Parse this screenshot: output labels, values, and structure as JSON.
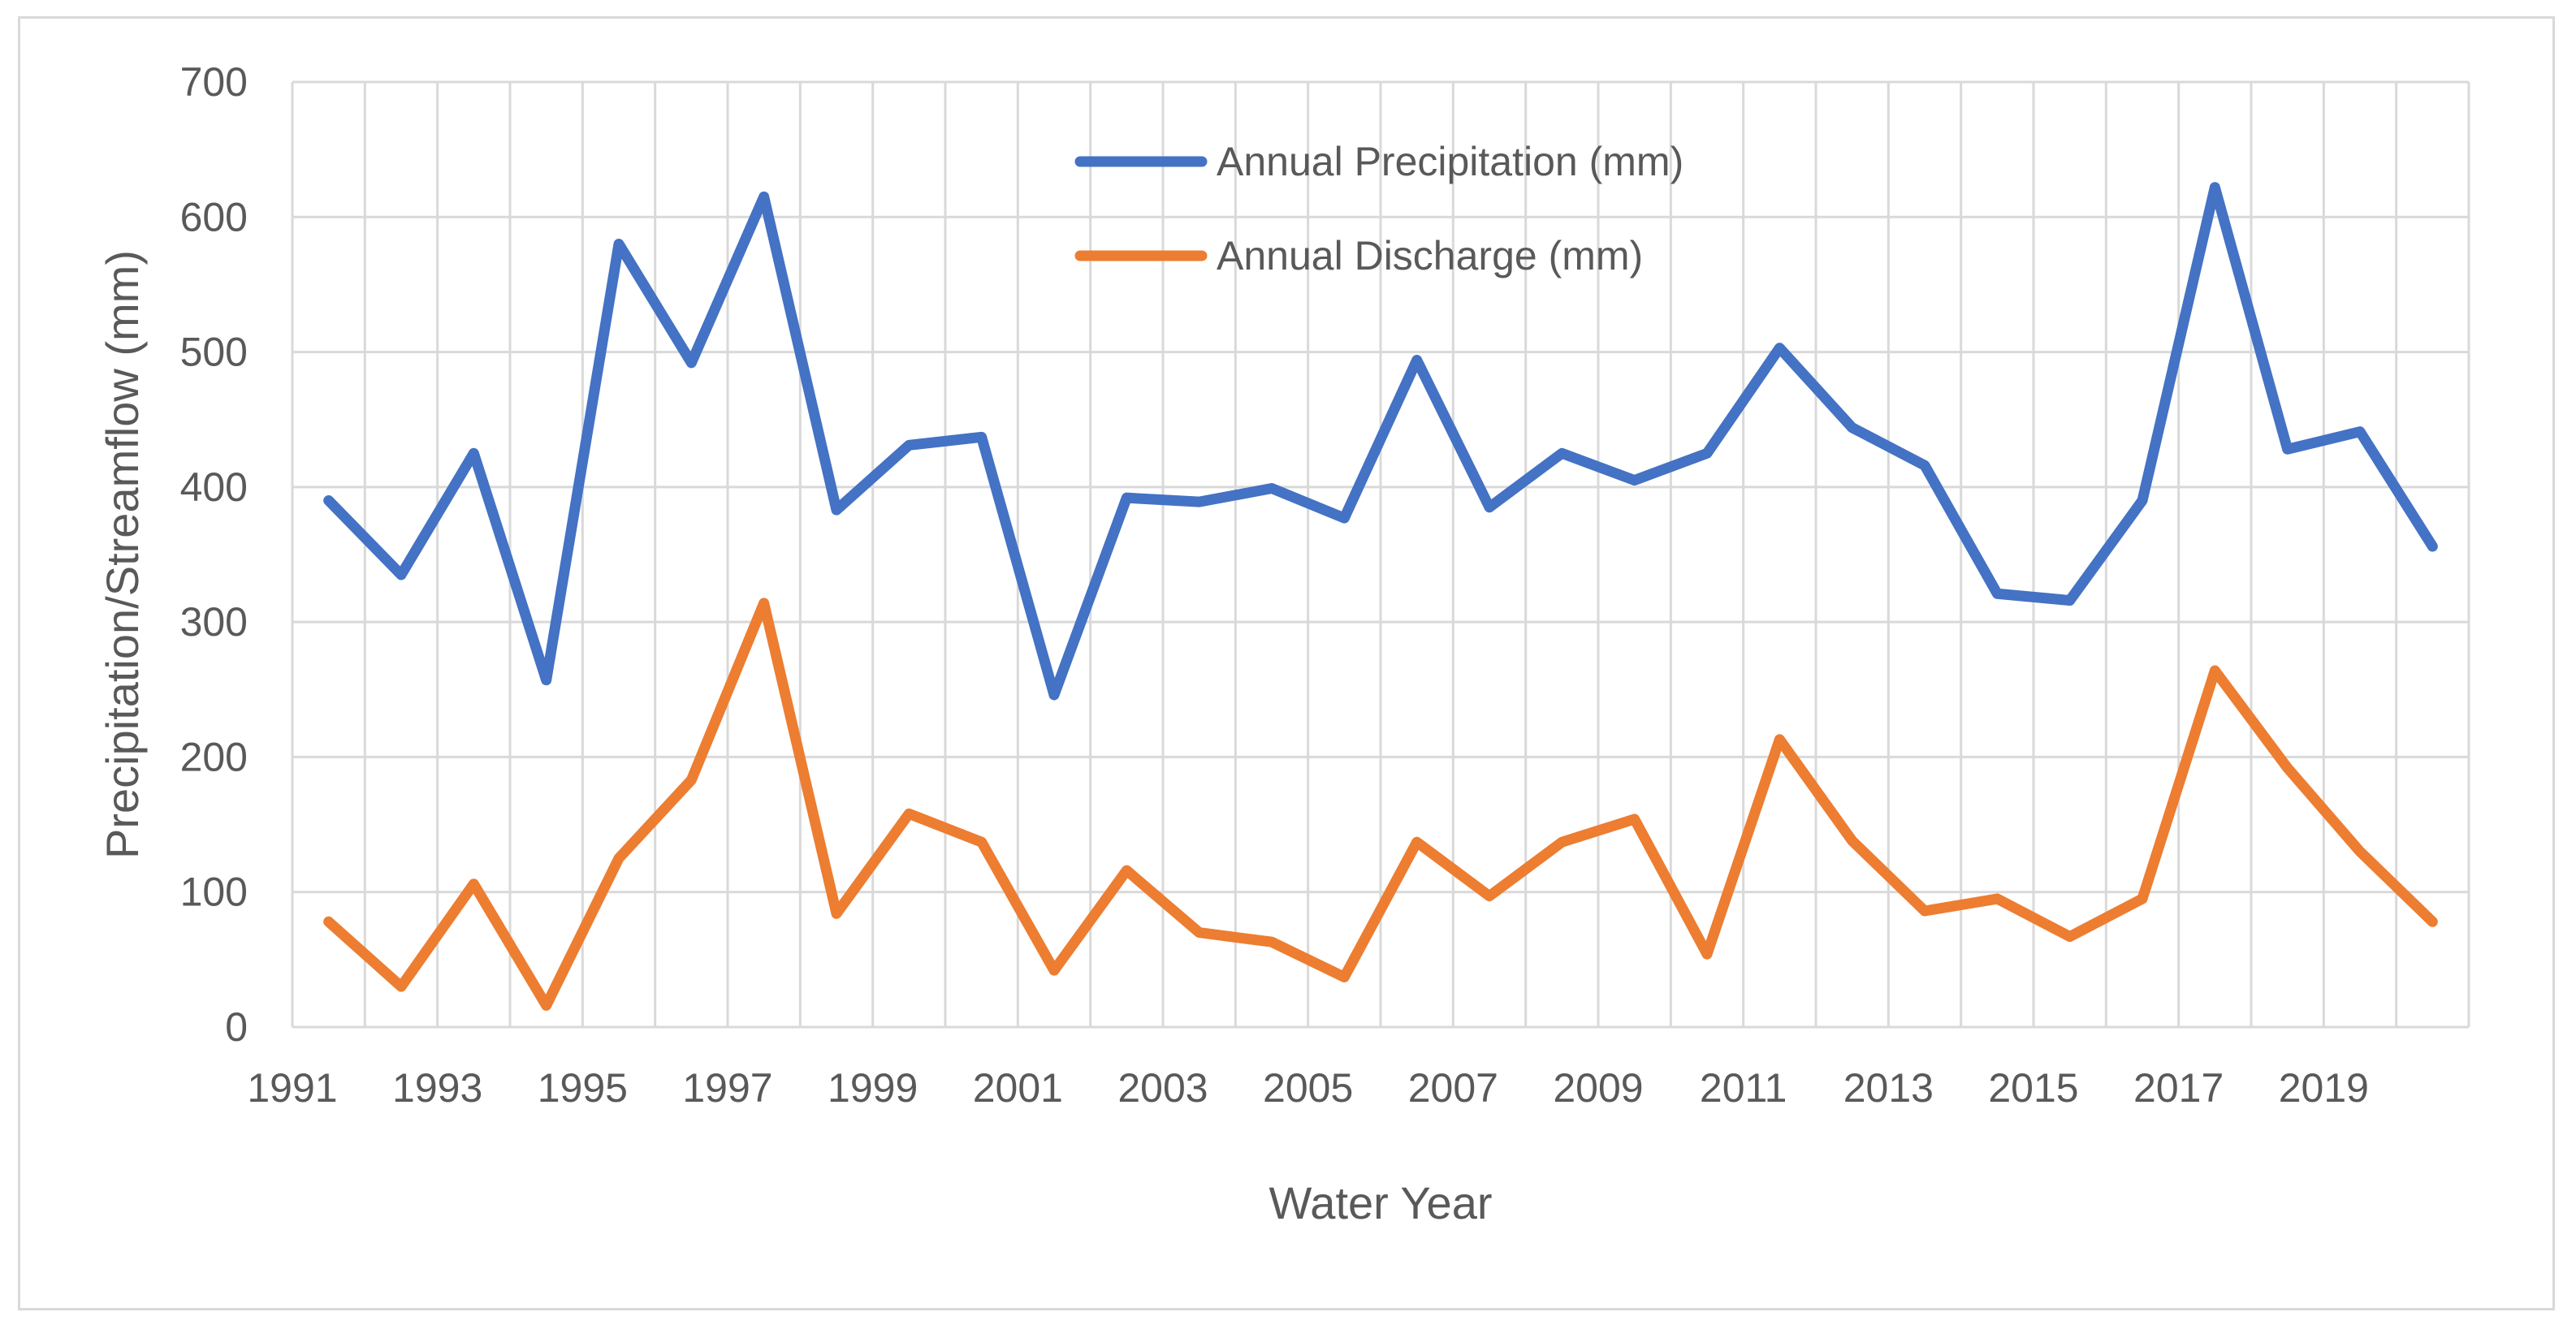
{
  "chart_data": {
    "type": "line",
    "title": "",
    "xlabel": "Water Year",
    "ylabel": "Precipitation/Streamflow (mm)",
    "ylim": [
      0,
      700
    ],
    "yticks": [
      "0",
      "100",
      "200",
      "300",
      "400",
      "500",
      "600",
      "700"
    ],
    "x": [
      1991,
      1992,
      1993,
      1994,
      1995,
      1996,
      1997,
      1998,
      1999,
      2000,
      2001,
      2002,
      2003,
      2004,
      2005,
      2006,
      2007,
      2008,
      2009,
      2010,
      2011,
      2012,
      2013,
      2014,
      2015,
      2016,
      2017,
      2018,
      2019,
      2020
    ],
    "xtick_labels": [
      "1991",
      "1993",
      "1995",
      "1997",
      "1999",
      "2001",
      "2003",
      "2005",
      "2007",
      "2009",
      "2011",
      "2013",
      "2015",
      "2017",
      "2019"
    ],
    "grid": true,
    "legend_position": "top-center",
    "series": [
      {
        "name": "Annual Precipitation (mm)",
        "color": "#4472c4",
        "values": [
          390,
          335,
          425,
          257,
          580,
          492,
          615,
          383,
          431,
          437,
          246,
          392,
          389,
          399,
          377,
          494,
          385,
          425,
          405,
          425,
          503,
          444,
          416,
          321,
          316,
          390,
          622,
          428,
          441,
          356
        ]
      },
      {
        "name": "Annual Discharge (mm)",
        "color": "#ed7d31",
        "values": [
          78,
          30,
          106,
          16,
          125,
          183,
          314,
          84,
          158,
          137,
          42,
          116,
          70,
          63,
          37,
          137,
          97,
          137,
          154,
          54,
          213,
          138,
          86,
          95,
          67,
          95,
          264,
          192,
          130,
          78
        ]
      }
    ]
  }
}
